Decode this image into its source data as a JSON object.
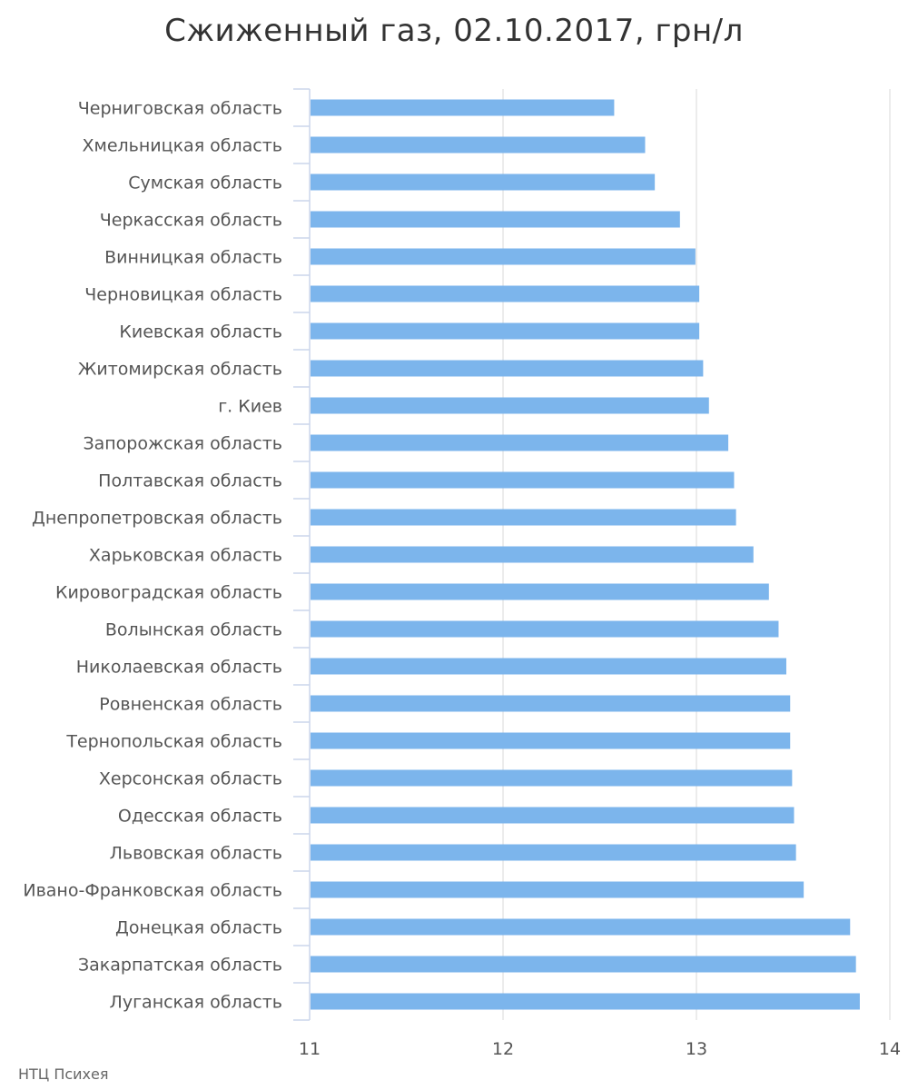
{
  "chart_data": {
    "type": "bar",
    "orientation": "horizontal",
    "title": "Сжиженный газ, 02.10.2017, грн/л",
    "xlabel": "",
    "ylabel": "",
    "xlim": [
      11,
      14
    ],
    "xticks": [
      "11",
      "12",
      "13",
      "14"
    ],
    "grid": true,
    "bar_color": "#7cb5ec",
    "categories": [
      "Черниговская область",
      "Хмельницкая область",
      "Сумская область",
      "Черкасская область",
      "Винницкая область",
      "Черновицкая область",
      "Киевская область",
      "Житомирская область",
      "г. Киев",
      "Запорожская область",
      "Полтавская область",
      "Днепропетровская область",
      "Харьковская область",
      "Кировоградская область",
      "Волынская область",
      "Николаевская область",
      "Ровненская область",
      "Тернопольская область",
      "Херсонская область",
      "Одесская область",
      "Львовская область",
      "Ивано-Франковская область",
      "Донецкая область",
      "Закарпатская область",
      "Луганская область"
    ],
    "values": [
      12.57,
      12.73,
      12.78,
      12.91,
      12.99,
      13.01,
      13.01,
      13.03,
      13.06,
      13.16,
      13.19,
      13.2,
      13.29,
      13.37,
      13.42,
      13.46,
      13.48,
      13.48,
      13.49,
      13.5,
      13.51,
      13.55,
      13.79,
      13.82,
      13.84
    ]
  },
  "credit": "НТЦ Психея"
}
